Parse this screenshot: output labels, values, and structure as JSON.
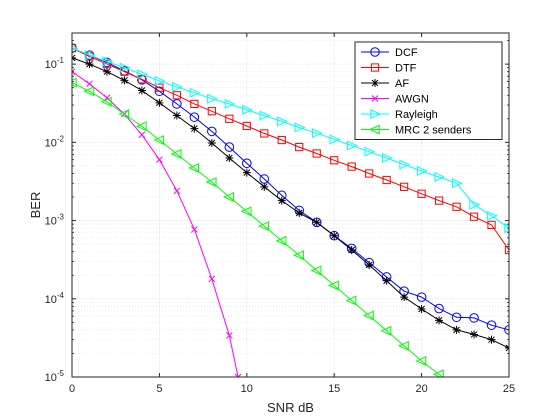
{
  "chart_data": {
    "type": "line",
    "xlabel": "SNR dB",
    "ylabel": "BER",
    "xlim": [
      0,
      25
    ],
    "ylim": [
      1e-05,
      0.25
    ],
    "yscale": "log",
    "grid": true,
    "minor_grid": true,
    "legend_position": "top-right",
    "x_ticks": [
      0,
      5,
      10,
      15,
      20,
      25
    ],
    "y_ticks": [
      {
        "value": 1e-05,
        "base": "10",
        "exp": "-5"
      },
      {
        "value": 0.0001,
        "base": "10",
        "exp": "-4"
      },
      {
        "value": 0.001,
        "base": "10",
        "exp": "-3"
      },
      {
        "value": 0.01,
        "base": "10",
        "exp": "-2"
      },
      {
        "value": 0.1,
        "base": "10",
        "exp": "-1"
      }
    ],
    "series": [
      {
        "name": "DCF",
        "color": "#0000ff",
        "marker": "circle",
        "x": [
          0,
          1,
          2,
          3,
          4,
          5,
          6,
          7,
          8,
          9,
          10,
          11,
          12,
          13,
          14,
          15,
          16,
          17,
          18,
          19,
          20,
          21,
          22,
          23,
          24,
          25
        ],
        "y": [
          0.16,
          0.13,
          0.105,
          0.082,
          0.063,
          0.045,
          0.031,
          0.021,
          0.0138,
          0.0087,
          0.0054,
          0.0034,
          0.0021,
          0.00135,
          0.00095,
          0.00064,
          0.00044,
          0.00029,
          0.00019,
          0.000125,
          0.000105,
          7.5e-05,
          5.8e-05,
          5.7e-05,
          4.6e-05,
          4e-05
        ]
      },
      {
        "name": "DTF",
        "color": "#ff0000",
        "marker": "square",
        "x": [
          0,
          1,
          2,
          3,
          4,
          5,
          6,
          7,
          8,
          9,
          10,
          11,
          12,
          13,
          14,
          15,
          16,
          17,
          18,
          19,
          20,
          21,
          22,
          23,
          24,
          25
        ],
        "y": [
          0.16,
          0.125,
          0.1,
          0.08,
          0.064,
          0.05,
          0.04,
          0.031,
          0.025,
          0.02,
          0.0162,
          0.013,
          0.0107,
          0.0087,
          0.0072,
          0.0059,
          0.0049,
          0.004,
          0.0033,
          0.0027,
          0.0022,
          0.0018,
          0.0015,
          0.00112,
          0.00088,
          0.00042
        ]
      },
      {
        "name": "AF",
        "color": "#000000",
        "marker": "star",
        "x": [
          0,
          1,
          2,
          3,
          4,
          5,
          6,
          7,
          8,
          9,
          10,
          11,
          12,
          13,
          14,
          15,
          16,
          17,
          18,
          19,
          20,
          21,
          22,
          23,
          24,
          25
        ],
        "y": [
          0.12,
          0.1,
          0.08,
          0.062,
          0.046,
          0.032,
          0.022,
          0.015,
          0.0098,
          0.0063,
          0.0041,
          0.0027,
          0.0018,
          0.00125,
          0.00095,
          0.00064,
          0.00042,
          0.00027,
          0.00017,
          0.000105,
          7.4e-05,
          5.3e-05,
          4e-05,
          3.5e-05,
          3e-05,
          2.35e-05
        ]
      },
      {
        "name": "AWGN",
        "color": "#ff00ff",
        "marker": "x",
        "x": [
          0,
          1,
          2,
          3,
          4,
          5,
          6,
          7,
          8,
          9,
          9.5
        ],
        "y": [
          0.08,
          0.056,
          0.037,
          0.023,
          0.0125,
          0.006,
          0.0024,
          0.00077,
          0.00018,
          3.4e-05,
          1e-05
        ]
      },
      {
        "name": "Rayleigh",
        "color": "#00ffff",
        "marker": "triangle-right",
        "x": [
          0,
          1,
          2,
          3,
          4,
          5,
          6,
          7,
          8,
          9,
          10,
          11,
          12,
          13,
          14,
          15,
          16,
          17,
          18,
          19,
          20,
          21,
          22,
          23,
          24,
          25
        ],
        "y": [
          0.16,
          0.13,
          0.108,
          0.09,
          0.074,
          0.061,
          0.051,
          0.043,
          0.036,
          0.031,
          0.026,
          0.022,
          0.0185,
          0.0155,
          0.0131,
          0.0109,
          0.0091,
          0.0076,
          0.0063,
          0.0052,
          0.0043,
          0.0036,
          0.003,
          0.0016,
          0.00115,
          0.0008
        ]
      },
      {
        "name": "MRC 2 senders",
        "color": "#00ff00",
        "marker": "triangle-left",
        "x": [
          0,
          1,
          2,
          3,
          4,
          5,
          6,
          7,
          8,
          9,
          10,
          11,
          12,
          13,
          14,
          15,
          16,
          17,
          18,
          19,
          20,
          21,
          22
        ],
        "y": [
          0.058,
          0.045,
          0.033,
          0.023,
          0.016,
          0.0107,
          0.0071,
          0.0047,
          0.0031,
          0.002,
          0.00131,
          0.00085,
          0.00055,
          0.00036,
          0.00023,
          0.000148,
          9.5e-05,
          6.1e-05,
          3.9e-05,
          2.5e-05,
          1.6e-05,
          1.08e-05,
          7.5e-06
        ]
      }
    ]
  }
}
